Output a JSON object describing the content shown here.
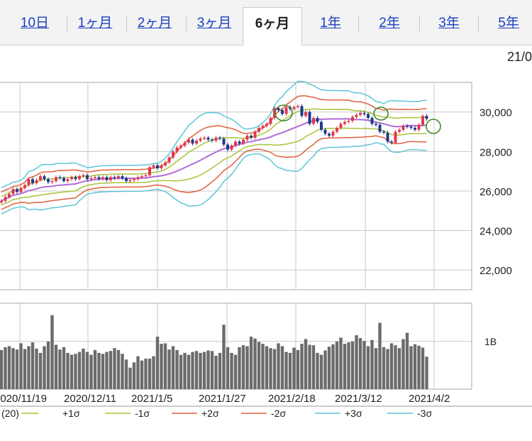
{
  "tabs": [
    {
      "label": "10日",
      "active": false
    },
    {
      "label": "1ヶ月",
      "active": false
    },
    {
      "label": "2ヶ月",
      "active": false
    },
    {
      "label": "3ヶ月",
      "active": false
    },
    {
      "label": "6ヶ月",
      "active": true
    },
    {
      "label": "1年",
      "active": false
    },
    {
      "label": "2年",
      "active": false
    },
    {
      "label": "3年",
      "active": false
    },
    {
      "label": "5年",
      "active": false
    }
  ],
  "date_hint": "21/0",
  "chart_data": {
    "type": "candlestick",
    "xlabels": [
      "2020/11/19",
      "2020/12/11",
      "2021/1/5",
      "2021/1/27",
      "2021/2/18",
      "2021/3/12",
      "2021/4/2"
    ],
    "ylabels": [
      "30,000",
      "28,000",
      "26,000",
      "24,000",
      "22,000"
    ],
    "yticks": [
      30000,
      28000,
      26000,
      24000,
      22000
    ],
    "ylim": [
      21000,
      31500
    ],
    "volume_label": "1B",
    "volume_tick": 1000000000,
    "volume_max": 1800000000,
    "legend": [
      {
        "label": "(20)",
        "color": "#b26bd6"
      },
      {
        "label": "+1σ",
        "color": "#a9c43a"
      },
      {
        "label": "-1σ",
        "color": "#a9c43a"
      },
      {
        "label": "+2σ",
        "color": "#e0603c"
      },
      {
        "label": "-2σ",
        "color": "#e0603c"
      },
      {
        "label": "+3σ",
        "color": "#5cc6d6"
      },
      {
        "label": "-3σ",
        "color": "#5cc6d6"
      }
    ],
    "colors": {
      "up": "#e0374a",
      "down": "#1b3a8c",
      "volume": "#6b6b6b",
      "grid": "#c8c8c8",
      "highlight": "#3f8a2c"
    },
    "close": [
      25500,
      25700,
      25850,
      26100,
      25950,
      26150,
      26300,
      26600,
      26400,
      26550,
      26750,
      26600,
      26450,
      26500,
      26700,
      26650,
      26500,
      26600,
      26700,
      26600,
      26750,
      26800,
      26600,
      26650,
      26700,
      26600,
      26700,
      26550,
      26700,
      26650,
      26750,
      26650,
      26500,
      26550,
      26600,
      26700,
      26750,
      26800,
      27200,
      27300,
      27150,
      27300,
      27450,
      27700,
      28000,
      28200,
      28300,
      28450,
      28600,
      28400,
      28550,
      28650,
      28700,
      28600,
      28550,
      28700,
      28650,
      28350,
      28100,
      28300,
      28500,
      28400,
      28600,
      28800,
      28700,
      29000,
      29200,
      29300,
      29400,
      29700,
      30200,
      30100,
      29900,
      30250,
      30150,
      30250,
      30300,
      29800,
      30000,
      29400,
      29700,
      29500,
      29100,
      28900,
      28800,
      29000,
      29200,
      29400,
      29500,
      29550,
      29750,
      29850,
      29950,
      29900,
      29700,
      29400,
      29350,
      29000,
      28950,
      28500,
      28450,
      29000,
      29100,
      29300,
      29250,
      29200,
      29100,
      29350,
      29800,
      29650
    ],
    "volume": [
      820000000,
      880000000,
      900000000,
      860000000,
      830000000,
      960000000,
      840000000,
      900000000,
      980000000,
      850000000,
      760000000,
      900000000,
      1000000000,
      1550000000,
      930000000,
      830000000,
      880000000,
      760000000,
      720000000,
      740000000,
      780000000,
      850000000,
      780000000,
      720000000,
      820000000,
      760000000,
      740000000,
      780000000,
      800000000,
      860000000,
      820000000,
      740000000,
      620000000,
      450000000,
      560000000,
      690000000,
      600000000,
      640000000,
      640000000,
      690000000,
      1100000000,
      950000000,
      960000000,
      830000000,
      900000000,
      820000000,
      720000000,
      760000000,
      720000000,
      780000000,
      800000000,
      760000000,
      780000000,
      810000000,
      800000000,
      700000000,
      760000000,
      1350000000,
      880000000,
      760000000,
      720000000,
      880000000,
      920000000,
      900000000,
      1100000000,
      1060000000,
      990000000,
      950000000,
      900000000,
      860000000,
      840000000,
      960000000,
      900000000,
      780000000,
      760000000,
      870000000,
      820000000,
      950000000,
      1050000000,
      930000000,
      920000000,
      760000000,
      720000000,
      810000000,
      890000000,
      940000000,
      1000000000,
      1080000000,
      950000000,
      980000000,
      1000000000,
      1130000000,
      1070000000,
      1010000000,
      900000000,
      1030000000,
      860000000,
      1390000000,
      880000000,
      840000000,
      960000000,
      920000000,
      860000000,
      1050000000,
      1180000000,
      900000000,
      940000000,
      910000000,
      870000000,
      680000000
    ]
  }
}
